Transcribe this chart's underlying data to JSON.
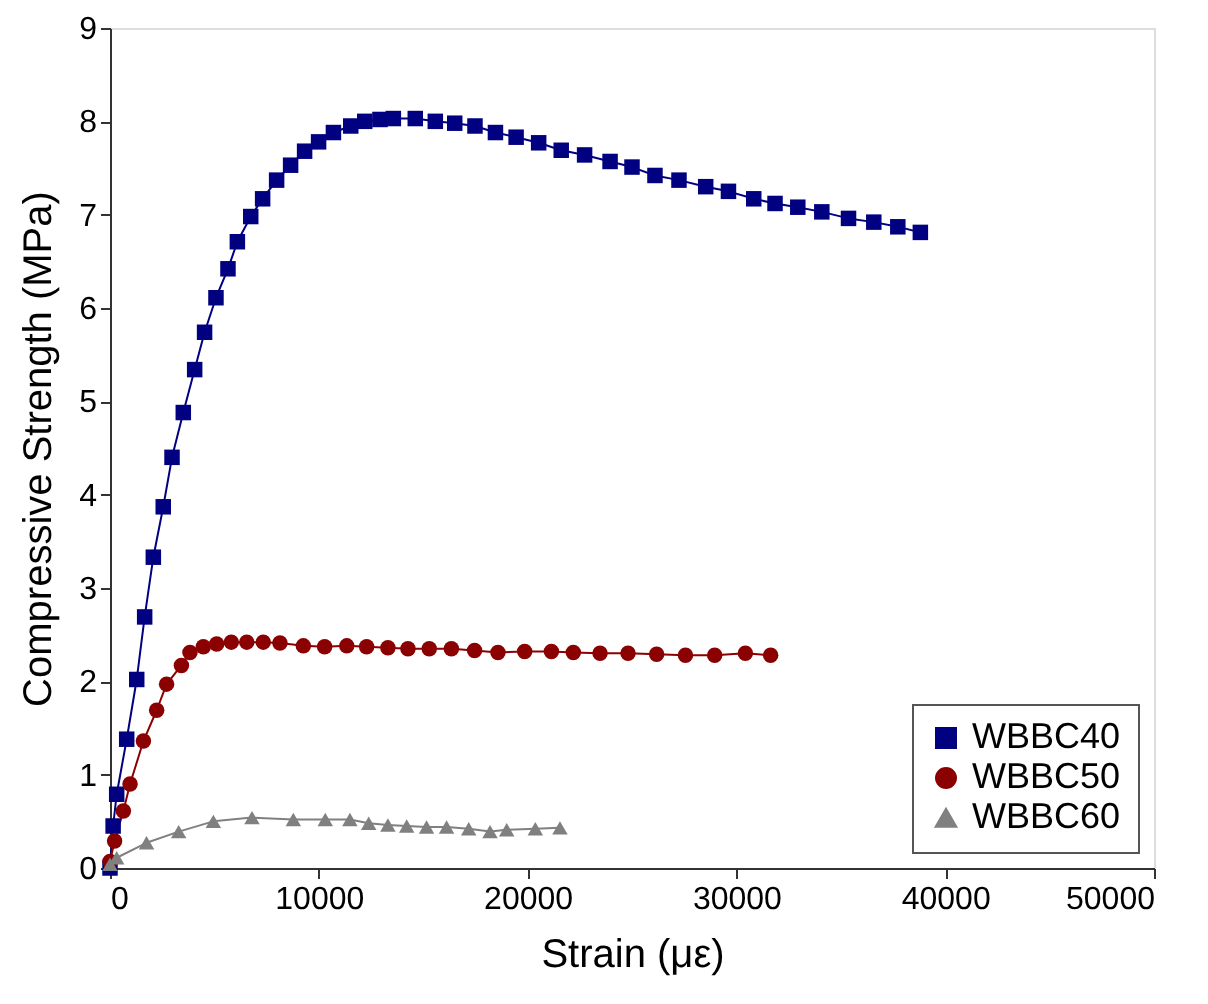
{
  "chart_data": {
    "type": "line",
    "xlabel": "Strain (με)",
    "ylabel": "Compressive Strength (MPa)",
    "xlim": [
      0,
      50000
    ],
    "ylim": [
      0,
      9
    ],
    "xticks": [
      0,
      10000,
      20000,
      30000,
      40000,
      50000
    ],
    "yticks": [
      0,
      1,
      2,
      3,
      4,
      5,
      6,
      7,
      8,
      9
    ],
    "grid": false,
    "legend": "bottom right",
    "line_style": "solid",
    "series": [
      {
        "name": "WBBC40",
        "color": "#000080",
        "marker": "square",
        "x": [
          0,
          150,
          320,
          800,
          1280,
          1660,
          2075,
          2550,
          2970,
          3510,
          4055,
          4530,
          5075,
          5650,
          6100,
          6740,
          7310,
          7980,
          8650,
          9320,
          9990,
          10700,
          11530,
          12200,
          12930,
          13570,
          14620,
          15580,
          16510,
          17480,
          18460,
          19450,
          20530,
          21610,
          22730,
          23950,
          25000,
          26100,
          27250,
          28530,
          29620,
          30830,
          31850,
          32940,
          34090,
          35370,
          36580,
          37730,
          38810
        ],
        "values": [
          0,
          0.45,
          0.79,
          1.38,
          2.02,
          2.69,
          3.33,
          3.87,
          4.4,
          4.88,
          5.34,
          5.74,
          6.11,
          6.42,
          6.71,
          6.98,
          7.17,
          7.37,
          7.53,
          7.68,
          7.78,
          7.88,
          7.95,
          8.0,
          8.02,
          8.03,
          8.03,
          8.0,
          7.98,
          7.95,
          7.88,
          7.83,
          7.77,
          7.69,
          7.64,
          7.57,
          7.51,
          7.42,
          7.37,
          7.3,
          7.25,
          7.17,
          7.12,
          7.08,
          7.03,
          6.96,
          6.92,
          6.87,
          6.81
        ]
      },
      {
        "name": "WBBC50",
        "color": "#8b0000",
        "marker": "circle",
        "x": [
          0,
          220,
          640,
          960,
          1600,
          2235,
          2710,
          3420,
          3830,
          4470,
          5110,
          5810,
          6550,
          7340,
          8140,
          9260,
          10280,
          11340,
          12290,
          13310,
          14270,
          15290,
          16350,
          17460,
          18580,
          19860,
          21140,
          22190,
          23470,
          24810,
          26180,
          27560,
          28960,
          30430,
          31640
        ],
        "values": [
          0.07,
          0.29,
          0.61,
          0.9,
          1.36,
          1.69,
          1.97,
          2.17,
          2.31,
          2.37,
          2.4,
          2.42,
          2.42,
          2.42,
          2.41,
          2.38,
          2.37,
          2.38,
          2.37,
          2.36,
          2.35,
          2.35,
          2.35,
          2.33,
          2.31,
          2.32,
          2.32,
          2.31,
          2.3,
          2.3,
          2.29,
          2.28,
          2.28,
          2.3,
          2.28
        ]
      },
      {
        "name": "WBBC60",
        "color": "#808080",
        "marker": "triangle",
        "x": [
          0,
          320,
          1750,
          3290,
          4950,
          6800,
          8780,
          10310,
          11490,
          12390,
          13310,
          14210,
          15160,
          16120,
          17180,
          18200,
          19000,
          20370,
          21550
        ],
        "values": [
          0.04,
          0.11,
          0.27,
          0.39,
          0.5,
          0.54,
          0.52,
          0.52,
          0.52,
          0.48,
          0.46,
          0.45,
          0.44,
          0.44,
          0.42,
          0.39,
          0.41,
          0.42,
          0.43
        ]
      }
    ]
  }
}
